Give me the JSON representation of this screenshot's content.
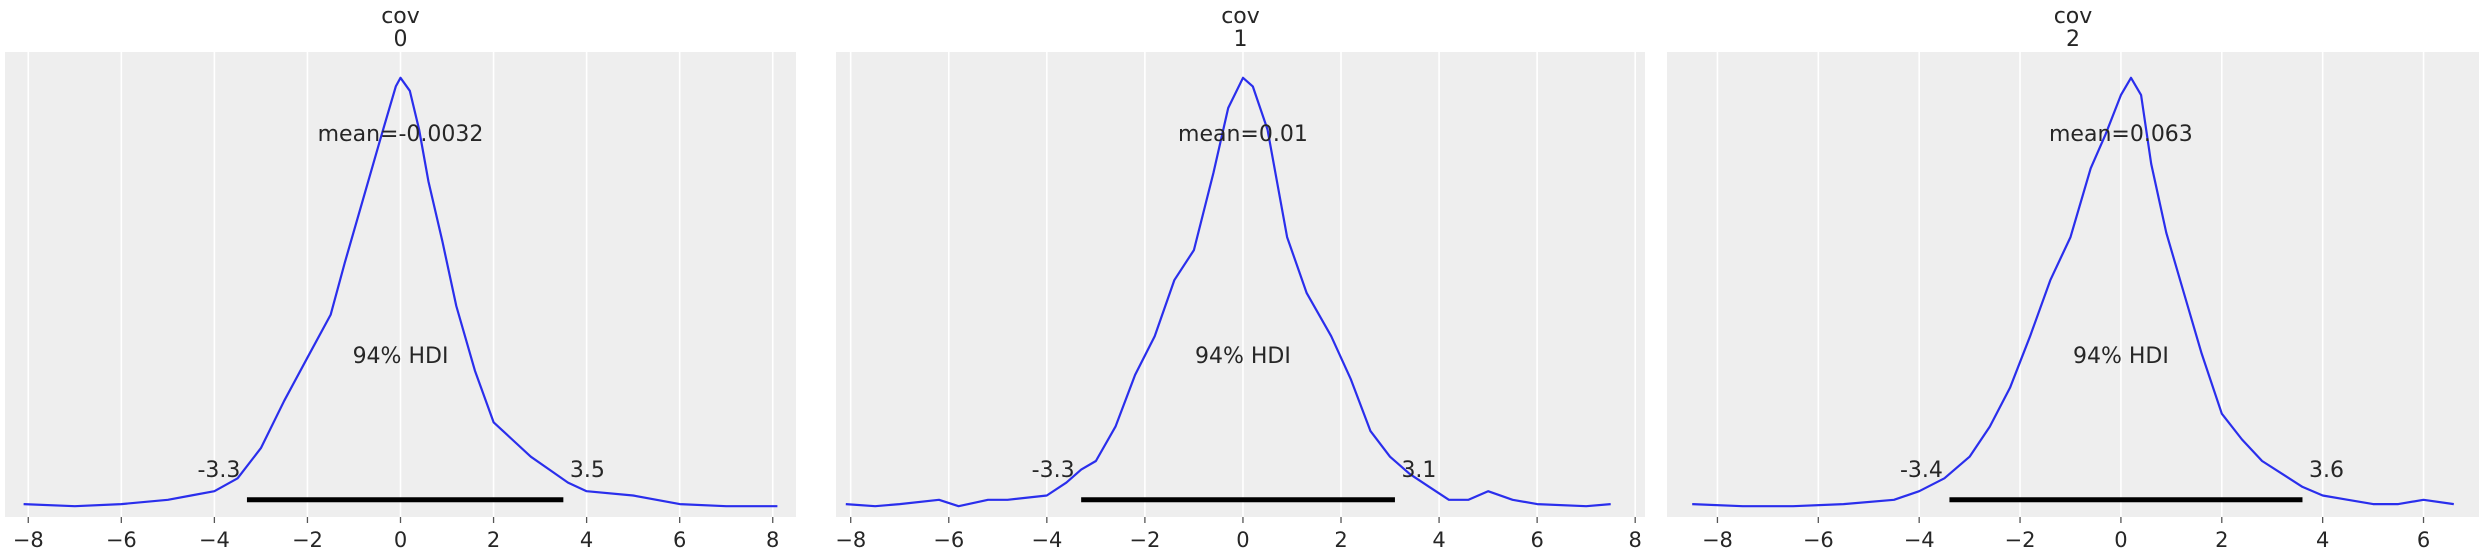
{
  "chart_data": [
    {
      "type": "line",
      "title_lines": [
        "cov",
        "0"
      ],
      "xlim": [
        -8.5,
        8.5
      ],
      "ylim": [
        -0.02,
        1.06
      ],
      "xticks": [
        -8,
        -6,
        -4,
        -2,
        0,
        2,
        4,
        6,
        8
      ],
      "xtick_labels": [
        "−8",
        "−6",
        "−4",
        "−2",
        "0",
        "2",
        "4",
        "6",
        "8"
      ],
      "grid": true,
      "line_color": "#2a2eec",
      "density": {
        "x": [
          -8.1,
          -7.0,
          -6.0,
          -5.0,
          -4.5,
          -4.0,
          -3.5,
          -3.0,
          -2.5,
          -2.0,
          -1.5,
          -1.2,
          -0.8,
          -0.4,
          -0.1,
          0.0,
          0.2,
          0.4,
          0.6,
          0.9,
          1.2,
          1.6,
          2.0,
          2.4,
          2.8,
          3.2,
          3.6,
          4.0,
          5.0,
          6.0,
          7.0,
          8.1
        ],
        "y": [
          0.01,
          0.005,
          0.01,
          0.02,
          0.03,
          0.04,
          0.07,
          0.14,
          0.25,
          0.35,
          0.45,
          0.57,
          0.72,
          0.87,
          0.98,
          1.0,
          0.97,
          0.88,
          0.76,
          0.62,
          0.47,
          0.32,
          0.2,
          0.16,
          0.12,
          0.09,
          0.06,
          0.04,
          0.03,
          0.01,
          0.005,
          0.005
        ]
      },
      "mean_label": "mean=-0.0032",
      "hdi_label": "94% HDI",
      "hdi": [
        -3.3,
        3.5
      ],
      "hdi_low_label": "-3.3",
      "hdi_high_label": "3.5"
    },
    {
      "type": "line",
      "title_lines": [
        "cov",
        "1"
      ],
      "xlim": [
        -8.3,
        8.2
      ],
      "ylim": [
        -0.02,
        1.06
      ],
      "xticks": [
        -8,
        -6,
        -4,
        -2,
        0,
        2,
        4,
        6,
        8
      ],
      "xtick_labels": [
        "−8",
        "−6",
        "−4",
        "−2",
        "0",
        "2",
        "4",
        "6",
        "8"
      ],
      "grid": true,
      "line_color": "#2a2eec",
      "density": {
        "x": [
          -8.1,
          -7.5,
          -7.0,
          -6.2,
          -5.8,
          -5.2,
          -4.8,
          -4.0,
          -3.6,
          -3.3,
          -3.0,
          -2.6,
          -2.2,
          -1.8,
          -1.4,
          -1.0,
          -0.6,
          -0.3,
          0.0,
          0.2,
          0.5,
          0.9,
          1.3,
          1.8,
          2.2,
          2.6,
          3.0,
          3.4,
          3.8,
          4.2,
          4.6,
          5.0,
          5.5,
          6.0,
          7.0,
          7.5
        ],
        "y": [
          0.01,
          0.005,
          0.01,
          0.02,
          0.005,
          0.02,
          0.02,
          0.03,
          0.06,
          0.09,
          0.11,
          0.19,
          0.31,
          0.4,
          0.53,
          0.6,
          0.78,
          0.93,
          1.0,
          0.98,
          0.88,
          0.63,
          0.5,
          0.4,
          0.3,
          0.18,
          0.12,
          0.08,
          0.05,
          0.02,
          0.02,
          0.04,
          0.02,
          0.01,
          0.005,
          0.01
        ]
      },
      "mean_label": "mean=0.01",
      "hdi_label": "94% HDI",
      "hdi": [
        -3.3,
        3.1
      ],
      "hdi_low_label": "-3.3",
      "hdi_high_label": "3.1"
    },
    {
      "type": "line",
      "title_lines": [
        "cov",
        "2"
      ],
      "xlim": [
        -9.0,
        7.1
      ],
      "ylim": [
        -0.02,
        1.06
      ],
      "xticks": [
        -8,
        -6,
        -4,
        -2,
        0,
        2,
        4,
        6
      ],
      "xtick_labels": [
        "−8",
        "−6",
        "−4",
        "−2",
        "0",
        "2",
        "4",
        "6"
      ],
      "grid": true,
      "line_color": "#2a2eec",
      "density": {
        "x": [
          -8.5,
          -7.5,
          -6.5,
          -5.5,
          -4.5,
          -4.0,
          -3.5,
          -3.0,
          -2.6,
          -2.2,
          -1.8,
          -1.4,
          -1.0,
          -0.6,
          -0.3,
          0.0,
          0.2,
          0.4,
          0.6,
          0.9,
          1.2,
          1.6,
          2.0,
          2.4,
          2.8,
          3.2,
          3.6,
          4.0,
          4.5,
          5.0,
          5.5,
          6.0,
          6.6
        ],
        "y": [
          0.01,
          0.005,
          0.005,
          0.01,
          0.02,
          0.04,
          0.07,
          0.12,
          0.19,
          0.28,
          0.4,
          0.53,
          0.63,
          0.79,
          0.87,
          0.96,
          1.0,
          0.96,
          0.8,
          0.64,
          0.52,
          0.36,
          0.22,
          0.16,
          0.11,
          0.08,
          0.05,
          0.03,
          0.02,
          0.01,
          0.01,
          0.02,
          0.01
        ]
      },
      "mean_label": "mean=0.063",
      "hdi_label": "94% HDI",
      "hdi": [
        -3.4,
        3.6
      ],
      "hdi_low_label": "-3.4",
      "hdi_high_label": "3.6"
    }
  ]
}
